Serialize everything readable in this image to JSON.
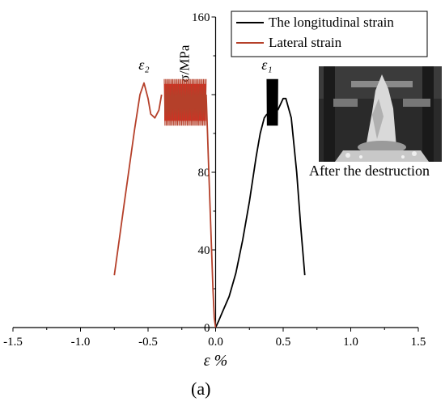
{
  "chart_data": {
    "type": "line",
    "xlabel": "ε %",
    "ylabel": "σ/MPa",
    "xlim": [
      -1.5,
      1.5
    ],
    "ylim": [
      0,
      160
    ],
    "xticks": [
      -1.5,
      -1.0,
      -0.5,
      0.0,
      0.5,
      1.0,
      1.5
    ],
    "xtick_labels": [
      "-1.5",
      "-1.0",
      "-0.5",
      "0.0",
      "0.5",
      "1.0",
      "1.5"
    ],
    "yticks": [
      0,
      40,
      80,
      120,
      160
    ],
    "ytick_labels": [
      "0",
      "40",
      "80",
      "",
      "160"
    ],
    "grid": false,
    "legend_position": "top-right",
    "series": [
      {
        "name": "The longitudinal strain",
        "color": "#000000",
        "x": [
          0.0,
          0.02,
          0.05,
          0.1,
          0.15,
          0.2,
          0.25,
          0.3,
          0.33,
          0.36,
          0.38
        ],
        "y": [
          0,
          3,
          8,
          16,
          28,
          45,
          65,
          88,
          100,
          108,
          110
        ],
        "cyclic": {
          "x_range": [
            0.38,
            0.46
          ],
          "y_range": [
            104,
            128
          ]
        },
        "post_peak": {
          "x": [
            0.46,
            0.5,
            0.52,
            0.56,
            0.6,
            0.63,
            0.66
          ],
          "y": [
            112,
            118,
            118,
            108,
            80,
            52,
            27
          ]
        }
      },
      {
        "name": "Lateral strain",
        "color": "#b5402a",
        "x": [
          -0.75,
          -0.72,
          -0.68,
          -0.64,
          -0.6,
          -0.56,
          -0.53,
          -0.5,
          -0.48,
          -0.45,
          -0.42,
          -0.4
        ],
        "y": [
          27,
          42,
          62,
          82,
          102,
          120,
          126,
          118,
          110,
          108,
          112,
          120
        ],
        "cyclic": {
          "x_range": [
            -0.38,
            -0.07
          ],
          "y_range": [
            104,
            128
          ],
          "fill_color": "#ff0000"
        },
        "post_peak": {
          "x": [
            -0.07,
            -0.06,
            -0.05,
            -0.04,
            -0.03,
            -0.02,
            -0.01,
            0.0
          ],
          "y": [
            120,
            100,
            80,
            60,
            40,
            20,
            5,
            0
          ]
        }
      }
    ],
    "annotations": [
      {
        "text": "ε₂",
        "x": -0.57,
        "y": 133
      },
      {
        "text": "ε₁",
        "x": 0.34,
        "y": 133
      }
    ]
  },
  "photo": {
    "icon": "specimen-photo",
    "caption": "After the destruction"
  },
  "panel_label": "(a)"
}
